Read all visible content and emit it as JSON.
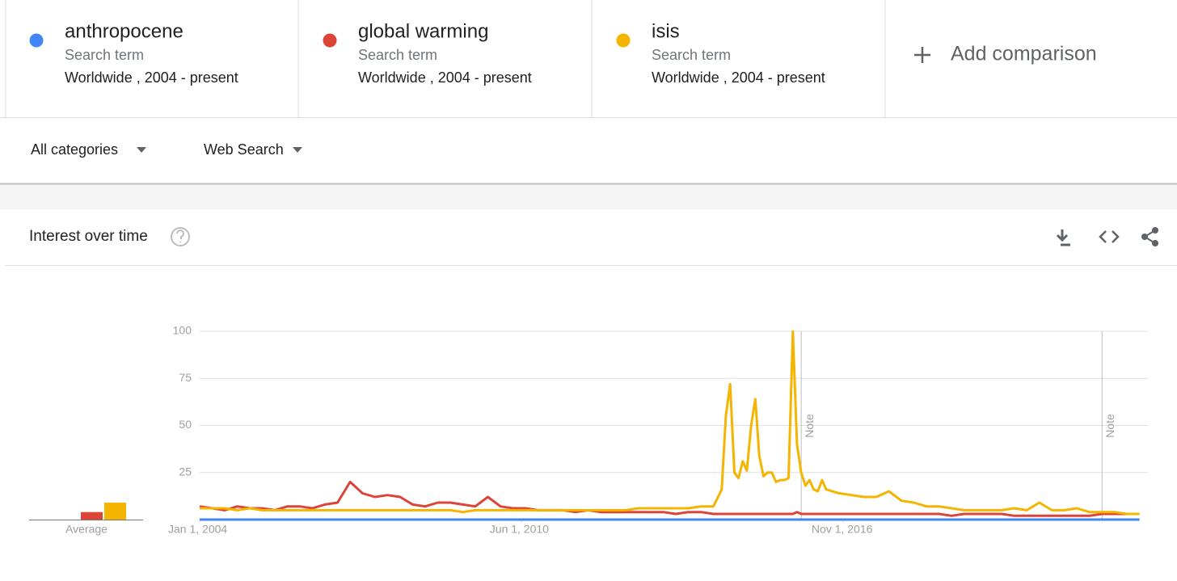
{
  "terms": [
    {
      "kind": "Search term",
      "scope": "Worldwide , 2004 - present"
    },
    {
      "kind": "Search term",
      "scope": "Worldwide , 2004 - present"
    },
    {
      "kind": "Search term",
      "scope": "Worldwide , 2004 - present"
    }
  ],
  "add_comparison": "Add comparison",
  "filters": [
    "All categories",
    "Web Search"
  ],
  "panel_title": "Interest over time",
  "chart_data": {
    "type": "line",
    "x": [
      "2004-01-01",
      "2004-04-01",
      "2004-07-01",
      "2004-10-01",
      "2005-01-01",
      "2005-04-01",
      "2005-07-01",
      "2005-10-01",
      "2006-01-01",
      "2006-04-01",
      "2006-07-01",
      "2006-10-01",
      "2007-01-01",
      "2007-04-01",
      "2007-07-01",
      "2007-10-01",
      "2008-01-01",
      "2008-04-01",
      "2008-07-01",
      "2008-10-01",
      "2009-01-01",
      "2009-04-01",
      "2009-07-01",
      "2009-10-01",
      "2010-01-01",
      "2010-04-01",
      "2010-07-01",
      "2010-10-01",
      "2011-01-01",
      "2011-04-01",
      "2011-07-01",
      "2011-10-01",
      "2012-01-01",
      "2012-04-01",
      "2012-07-01",
      "2012-10-01",
      "2013-01-01",
      "2013-04-01",
      "2013-07-01",
      "2013-10-01",
      "2014-01-01",
      "2014-04-01",
      "2014-06-01",
      "2014-07-01",
      "2014-08-01",
      "2014-09-01",
      "2014-10-01",
      "2014-11-01",
      "2014-12-01",
      "2015-01-01",
      "2015-02-01",
      "2015-03-01",
      "2015-04-01",
      "2015-05-01",
      "2015-06-01",
      "2015-07-01",
      "2015-08-01",
      "2015-09-01",
      "2015-10-01",
      "2015-11-01",
      "2015-12-01",
      "2016-01-01",
      "2016-02-01",
      "2016-03-01",
      "2016-04-01",
      "2016-05-01",
      "2016-06-01",
      "2016-07-01",
      "2016-10-01",
      "2017-01-01",
      "2017-04-01",
      "2017-07-01",
      "2017-10-01",
      "2018-01-01",
      "2018-04-01",
      "2018-07-01",
      "2018-10-01",
      "2019-01-01",
      "2019-04-01",
      "2019-07-01",
      "2019-10-01",
      "2020-01-01",
      "2020-04-01",
      "2020-07-01",
      "2020-10-01",
      "2021-01-01",
      "2021-04-01",
      "2021-07-01",
      "2021-10-01",
      "2022-01-01",
      "2022-04-01",
      "2022-07-01",
      "2022-10-01"
    ],
    "series": [
      {
        "name": "anthropocene",
        "color": "#4285f4",
        "average": 0,
        "values": [
          0,
          0,
          0,
          0,
          0,
          0,
          0,
          0,
          0,
          0,
          0,
          0,
          0,
          0,
          0,
          0,
          0,
          0,
          0,
          0,
          0,
          0,
          0,
          0,
          0,
          0,
          0,
          0,
          0,
          0,
          0,
          0,
          0,
          0,
          0,
          0,
          0,
          0,
          0,
          0,
          0,
          0,
          0,
          0,
          0,
          0,
          0,
          0,
          0,
          0,
          0,
          0,
          0,
          0,
          0,
          0,
          0,
          0,
          0,
          0,
          0,
          0,
          0,
          0,
          0,
          0,
          0,
          0,
          0,
          0,
          0,
          0,
          0,
          0,
          0,
          0,
          0,
          0,
          0,
          0,
          0,
          0,
          0,
          0,
          0,
          0,
          0,
          0,
          0,
          0,
          0,
          0,
          0
        ]
      },
      {
        "name": "global warming",
        "color": "#db4437",
        "average": 4,
        "values": [
          7,
          6,
          5,
          7,
          6,
          6,
          5,
          7,
          7,
          6,
          8,
          9,
          20,
          14,
          12,
          13,
          12,
          8,
          7,
          9,
          9,
          8,
          7,
          12,
          7,
          6,
          6,
          5,
          5,
          5,
          4,
          5,
          4,
          4,
          4,
          4,
          4,
          4,
          3,
          4,
          4,
          3,
          3,
          3,
          3,
          3,
          3,
          3,
          3,
          3,
          3,
          3,
          3,
          3,
          3,
          3,
          3,
          3,
          3,
          3,
          4,
          3,
          3,
          3,
          3,
          3,
          3,
          3,
          3,
          3,
          3,
          3,
          3,
          3,
          3,
          3,
          3,
          2,
          3,
          3,
          3,
          3,
          2,
          2,
          2,
          2,
          2,
          2,
          2,
          3,
          3,
          3,
          3
        ]
      },
      {
        "name": "isis",
        "color": "#f4b400",
        "average": 9,
        "values": [
          6,
          6,
          6,
          5,
          6,
          5,
          5,
          5,
          5,
          5,
          5,
          5,
          5,
          5,
          5,
          5,
          5,
          5,
          5,
          5,
          5,
          4,
          5,
          5,
          5,
          5,
          5,
          5,
          5,
          5,
          5,
          5,
          5,
          5,
          5,
          6,
          6,
          6,
          6,
          6,
          7,
          7,
          16,
          55,
          72,
          25,
          22,
          31,
          26,
          50,
          64,
          34,
          23,
          25,
          25,
          20,
          21,
          21,
          22,
          100,
          40,
          25,
          18,
          21,
          16,
          15,
          21,
          16,
          14,
          13,
          12,
          12,
          15,
          10,
          9,
          7,
          7,
          6,
          5,
          5,
          5,
          5,
          6,
          5,
          9,
          5,
          5,
          6,
          4,
          4,
          4,
          3,
          3
        ]
      }
    ],
    "average_label": "Average",
    "xlim": [
      "2004-01-01",
      "2022-12-01"
    ],
    "xticks": [
      {
        "value": "2004-01-01",
        "label": "Jan 1, 2004"
      },
      {
        "value": "2010-06-01",
        "label": "Jun 1, 2010"
      },
      {
        "value": "2016-11-01",
        "label": "Nov 1, 2016"
      }
    ],
    "ylim": [
      0,
      100
    ],
    "yticks": [
      25,
      50,
      75,
      100
    ],
    "grid": true,
    "notes": [
      {
        "x": "2016-01-01",
        "label": "Note"
      },
      {
        "x": "2022-01-01",
        "label": "Note"
      }
    ]
  }
}
